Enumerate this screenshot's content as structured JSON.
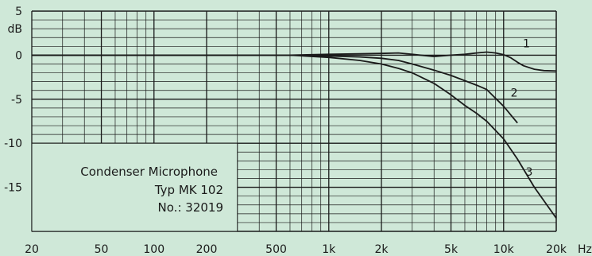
{
  "chart_data": {
    "type": "line",
    "xscale": "log",
    "xlim": [
      20,
      20000
    ],
    "ylim": [
      -20,
      5
    ],
    "xticks": [
      {
        "value": 20,
        "label": "20"
      },
      {
        "value": 50,
        "label": "50"
      },
      {
        "value": 100,
        "label": "100"
      },
      {
        "value": 200,
        "label": "200"
      },
      {
        "value": 500,
        "label": "500"
      },
      {
        "value": 1000,
        "label": "1k"
      },
      {
        "value": 2000,
        "label": "2k"
      },
      {
        "value": 5000,
        "label": "5k"
      },
      {
        "value": 10000,
        "label": "10k"
      },
      {
        "value": 20000,
        "label": "20k"
      }
    ],
    "xunit": "Hz",
    "yticks": [
      {
        "value": 5,
        "label": "5"
      },
      {
        "value": 0,
        "label": "0"
      },
      {
        "value": -5,
        "label": "-5"
      },
      {
        "value": -10,
        "label": "-10"
      },
      {
        "value": -15,
        "label": "-15"
      }
    ],
    "yunit": "dB",
    "grid": true,
    "series": [
      {
        "name": "1",
        "x": [
          20,
          600,
          1000,
          1500,
          2000,
          2500,
          3000,
          4000,
          5000,
          6000,
          7000,
          8000,
          9000,
          10000,
          11000,
          12000,
          13000,
          15000,
          17000,
          20000
        ],
        "y": [
          0,
          0,
          0.1,
          0.15,
          0.2,
          0.25,
          0.1,
          -0.15,
          0,
          0.1,
          0.25,
          0.35,
          0.25,
          0.05,
          -0.3,
          -0.8,
          -1.2,
          -1.6,
          -1.75,
          -1.8
        ]
      },
      {
        "name": "2",
        "x": [
          20,
          600,
          1000,
          1500,
          2000,
          2500,
          3000,
          4000,
          5000,
          6000,
          7000,
          8000,
          10000,
          12000
        ],
        "y": [
          0,
          0,
          -0.1,
          -0.2,
          -0.35,
          -0.6,
          -1.0,
          -1.7,
          -2.3,
          -2.9,
          -3.4,
          -3.9,
          -5.8,
          -7.7
        ]
      },
      {
        "name": "3",
        "x": [
          20,
          600,
          1000,
          1500,
          2000,
          2500,
          3000,
          4000,
          5000,
          6000,
          7000,
          8000,
          10000,
          12000,
          15000,
          20000
        ],
        "y": [
          0,
          0,
          -0.25,
          -0.6,
          -1.0,
          -1.5,
          -2.0,
          -3.2,
          -4.5,
          -5.7,
          -6.6,
          -7.5,
          -9.5,
          -11.8,
          -15,
          -18.5
        ]
      }
    ]
  },
  "annotation": {
    "line1": "Condenser Microphone",
    "line2": "Typ MK 102",
    "line3": "No.: 32019"
  },
  "colors": {
    "background": "#cfe8d8",
    "grid": "#1a1a1a",
    "curve": "#1a1a1a"
  }
}
